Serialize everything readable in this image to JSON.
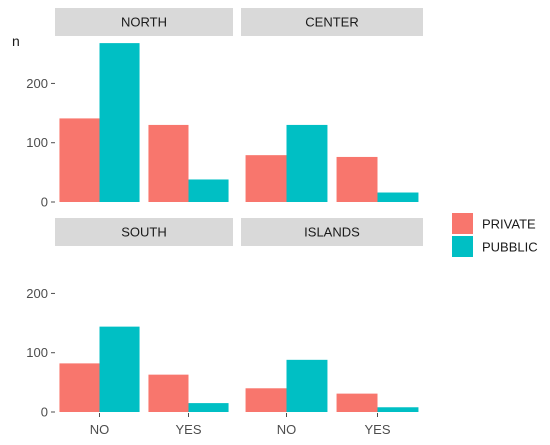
{
  "chart_data": {
    "type": "bar",
    "ylabel": "n",
    "categories": [
      "NO",
      "YES"
    ],
    "series_names": [
      "PRIVATE",
      "PUBBLIC"
    ],
    "colors": {
      "PRIVATE": "#F8766D",
      "PUBBLIC": "#00BFC4",
      "strip": "#D9D9D9",
      "strip_text": "#1A1A1A",
      "tick": "#4D4D4D"
    },
    "ylim": [
      0,
      280
    ],
    "yticks": [
      0,
      100,
      200
    ],
    "ytick_labels": [
      "0",
      "100",
      "200"
    ],
    "legend_position": "right",
    "grid": false,
    "facets": [
      {
        "title": "NORTH",
        "values": {
          "PRIVATE": [
            141,
            130
          ],
          "PUBBLIC": [
            268,
            38
          ]
        }
      },
      {
        "title": "CENTER",
        "values": {
          "PRIVATE": [
            79,
            76
          ],
          "PUBBLIC": [
            130,
            16
          ]
        }
      },
      {
        "title": "SOUTH",
        "values": {
          "PRIVATE": [
            82,
            63
          ],
          "PUBBLIC": [
            144,
            15
          ]
        }
      },
      {
        "title": "ISLANDS",
        "values": {
          "PRIVATE": [
            40,
            31
          ],
          "PUBBLIC": [
            88,
            8
          ]
        }
      }
    ]
  }
}
